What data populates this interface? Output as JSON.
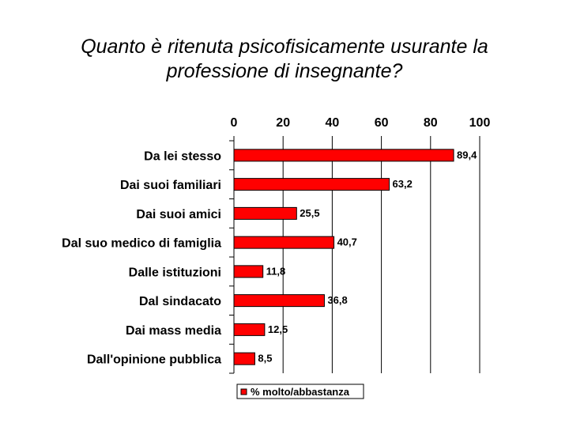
{
  "title": {
    "line1": "Quanto è ritenuta psicofisicamente usurante la",
    "line2": "professione di insegnante?"
  },
  "chart_data": {
    "type": "bar",
    "orientation": "horizontal",
    "categories": [
      "Da lei stesso",
      "Dai suoi familiari",
      "Dai suoi amici",
      "Dal suo medico di famiglia",
      "Dalle istituzioni",
      "Dal sindacato",
      "Dai mass media",
      "Dall'opinione pubblica"
    ],
    "series": [
      {
        "name": "% molto/abbastanza",
        "values": [
          89.4,
          63.2,
          25.5,
          40.7,
          11.8,
          36.8,
          12.5,
          8.5
        ],
        "labels": [
          "89,4",
          "63,2",
          "25,5",
          "40,7",
          "11,8",
          "36,8",
          "12,5",
          "8,5"
        ]
      }
    ],
    "xlim": [
      0,
      100
    ],
    "xticks": [
      0,
      20,
      40,
      60,
      80,
      100
    ],
    "xtick_labels": [
      "0",
      "20",
      "40",
      "60",
      "80",
      "100"
    ],
    "axis_position": "top",
    "grid": true,
    "legend": "bottom",
    "bar_color": "#ff0000"
  }
}
